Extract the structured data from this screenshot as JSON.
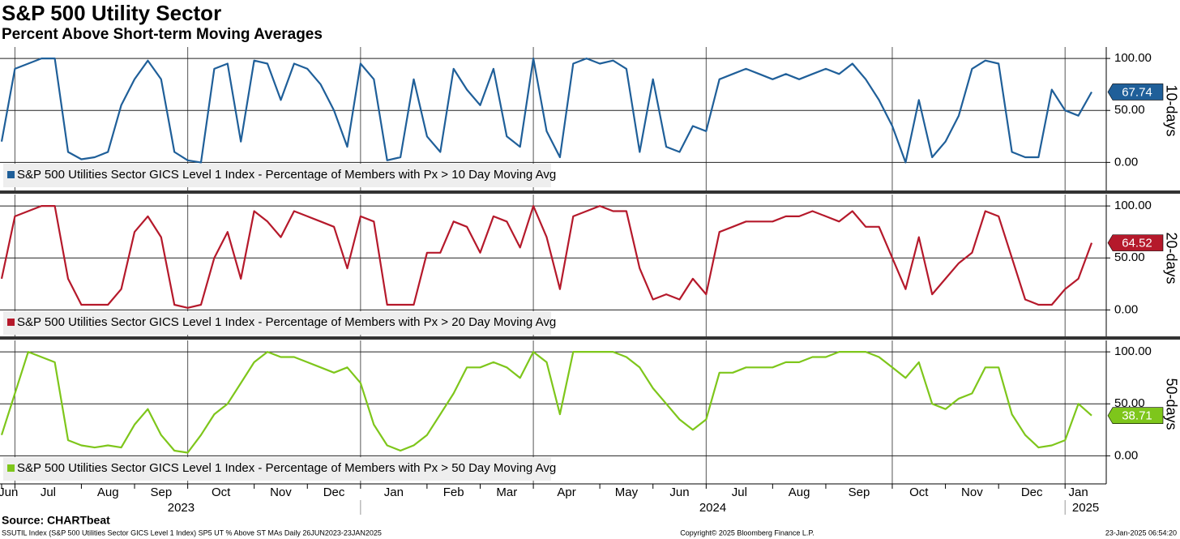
{
  "title": "S&P 500 Utility Sector",
  "subtitle": "Percent Above Short-term Moving Averages",
  "source": "Source: CHARTbeat",
  "footer_left": "SSUTIL Index (S&P 500 Utilities Sector GICS Level 1 Index) SP5 UT % Above ST MAs  Daily 26JUN2023-23JAN2025",
  "footer_center": "Copyright© 2025 Bloomberg Finance L.P.",
  "footer_right": "23-Jan-2025 06:54:20",
  "x_axis": {
    "categories": [
      "Jun",
      "Jul",
      null,
      null,
      null,
      null,
      "Aug",
      null,
      null,
      null,
      "Sep",
      null,
      null,
      null,
      "Oct",
      null,
      null,
      null,
      null,
      "Nov",
      null,
      null,
      null,
      "Dec",
      null,
      null,
      null,
      "Jan",
      null,
      null,
      null,
      null,
      "Feb",
      null,
      null,
      null,
      "Mar",
      null,
      null,
      null,
      "Apr",
      null,
      null,
      null,
      null,
      "May",
      null,
      null,
      null,
      "Jun",
      null,
      null,
      null,
      "Jul",
      null,
      null,
      null,
      null,
      "Aug",
      null,
      null,
      null,
      "Sep",
      null,
      null,
      null,
      null,
      "Oct",
      null,
      null,
      null,
      "Nov",
      null,
      null,
      null,
      "Dec",
      null,
      null,
      null,
      null,
      "Jan",
      null,
      null
    ],
    "years": [
      "2023",
      "2024",
      "2025"
    ]
  },
  "chart_data": [
    {
      "type": "line",
      "panel_label": "10-days",
      "ylim": [
        -27,
        111
      ],
      "yticks": [
        {
          "value": 0,
          "label": "0.00"
        },
        {
          "value": 50,
          "label": "50.00"
        },
        {
          "value": 100,
          "label": "100.00"
        }
      ],
      "series": [
        {
          "name": "S&P 500 Utilities Sector GICS Level 1 Index - Percentage of Members with Px > 10 Day Moving Avg",
          "color": "#1f5f99",
          "last_label": "67.74",
          "values": [
            20,
            90,
            95,
            100,
            100,
            10,
            3,
            5,
            10,
            55,
            80,
            98,
            80,
            10,
            2,
            0,
            90,
            95,
            20,
            98,
            95,
            60,
            95,
            90,
            75,
            50,
            15,
            95,
            80,
            2,
            5,
            80,
            25,
            10,
            90,
            70,
            55,
            90,
            25,
            15,
            100,
            30,
            5,
            95,
            100,
            95,
            98,
            90,
            10,
            80,
            15,
            10,
            35,
            30,
            80,
            85,
            90,
            85,
            80,
            85,
            80,
            85,
            90,
            85,
            95,
            80,
            60,
            35,
            0,
            60,
            5,
            20,
            45,
            90,
            98,
            95,
            10,
            5,
            5,
            70,
            50,
            45,
            67.74
          ]
        }
      ]
    },
    {
      "type": "line",
      "panel_label": "20-days",
      "ylim": [
        -27,
        111
      ],
      "yticks": [
        {
          "value": 0,
          "label": "0.00"
        },
        {
          "value": 50,
          "label": "50.00"
        },
        {
          "value": 100,
          "label": "100.00"
        }
      ],
      "series": [
        {
          "name": "S&P 500 Utilities Sector GICS Level 1 Index - Percentage of Members with Px > 20 Day Moving Avg",
          "color": "#b5192b",
          "last_label": "64.52",
          "values": [
            30,
            90,
            95,
            100,
            100,
            30,
            5,
            5,
            5,
            20,
            75,
            90,
            70,
            5,
            2,
            5,
            50,
            75,
            30,
            95,
            85,
            70,
            95,
            90,
            85,
            80,
            40,
            90,
            85,
            5,
            5,
            5,
            55,
            55,
            85,
            80,
            55,
            90,
            85,
            60,
            100,
            70,
            20,
            90,
            95,
            100,
            95,
            95,
            40,
            10,
            15,
            10,
            30,
            15,
            75,
            80,
            85,
            85,
            85,
            90,
            90,
            95,
            90,
            85,
            95,
            80,
            80,
            50,
            20,
            70,
            15,
            30,
            45,
            55,
            95,
            90,
            50,
            10,
            5,
            5,
            20,
            30,
            64.52
          ]
        }
      ]
    },
    {
      "type": "line",
      "panel_label": "50-days",
      "ylim": [
        -27,
        111
      ],
      "yticks": [
        {
          "value": 0,
          "label": "0.00"
        },
        {
          "value": 50,
          "label": "50.00"
        },
        {
          "value": 100,
          "label": "100.00"
        }
      ],
      "series": [
        {
          "name": "S&P 500 Utilities Sector GICS Level 1 Index - Percentage of Members with Px > 50 Day Moving Avg",
          "color": "#7ec61b",
          "last_label": "38.71",
          "values": [
            20,
            60,
            100,
            95,
            90,
            15,
            10,
            8,
            10,
            8,
            30,
            45,
            20,
            5,
            3,
            20,
            40,
            50,
            70,
            90,
            100,
            95,
            95,
            90,
            85,
            80,
            85,
            70,
            30,
            10,
            5,
            10,
            20,
            40,
            60,
            85,
            85,
            90,
            85,
            75,
            100,
            90,
            40,
            100,
            100,
            100,
            100,
            95,
            85,
            65,
            50,
            35,
            25,
            35,
            80,
            80,
            85,
            85,
            85,
            90,
            90,
            95,
            95,
            100,
            100,
            100,
            95,
            85,
            75,
            90,
            50,
            45,
            55,
            60,
            85,
            85,
            40,
            20,
            8,
            10,
            15,
            50,
            38.71
          ]
        }
      ]
    }
  ]
}
